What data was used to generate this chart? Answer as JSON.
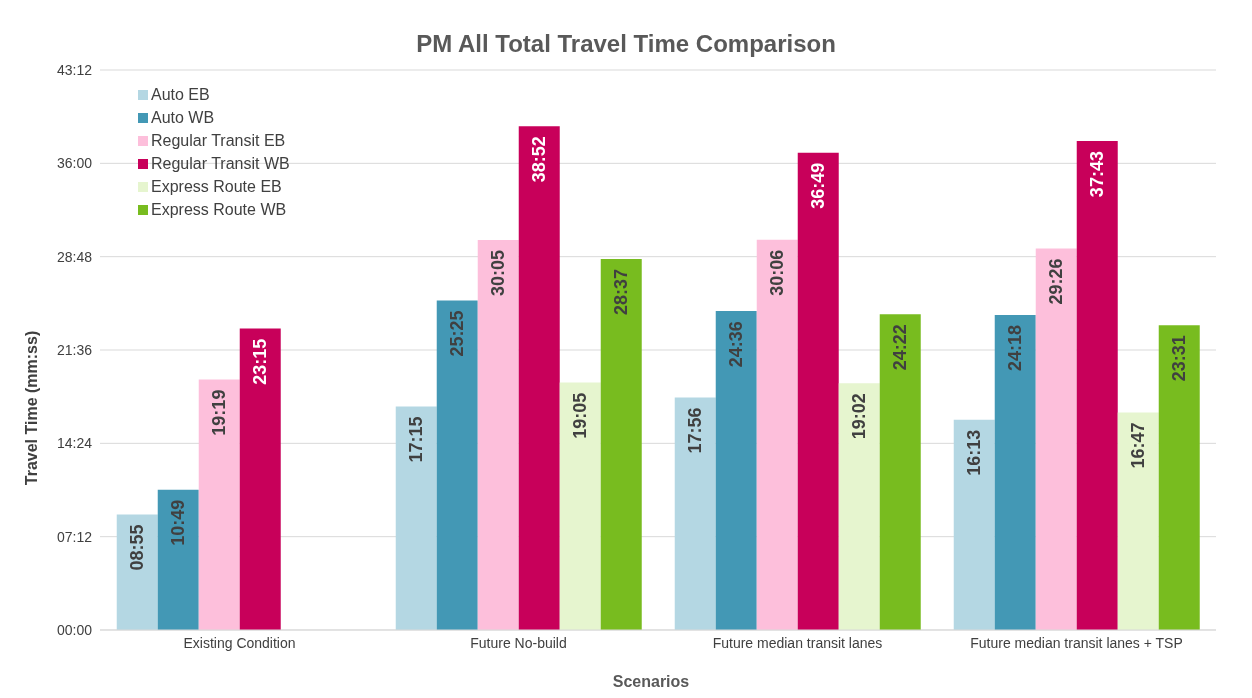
{
  "chart_data": {
    "type": "bar",
    "title": "PM All Total Travel Time Comparison",
    "xlabel": "Scenarios",
    "ylabel": "Travel Time (mm:ss)",
    "categories": [
      "Existing Condition",
      "Future No-build",
      "Future median transit lanes",
      "Future median transit lanes + TSP"
    ],
    "ylim": [
      0,
      2592
    ],
    "yticks": [
      {
        "value": 0,
        "label": "00:00"
      },
      {
        "value": 432,
        "label": "07:12"
      },
      {
        "value": 864,
        "label": "14:24"
      },
      {
        "value": 1296,
        "label": "21:36"
      },
      {
        "value": 1728,
        "label": "28:48"
      },
      {
        "value": 2160,
        "label": "36:00"
      },
      {
        "value": 2592,
        "label": "43:12"
      }
    ],
    "grid": "y",
    "legend": "top left",
    "series": [
      {
        "name": "Auto EB",
        "color": "#b4d7e3",
        "values": [
          535,
          1035,
          1076,
          973
        ],
        "value_labels": [
          "08:55",
          "17:15",
          "17:56",
          "16:13"
        ]
      },
      {
        "name": "Auto WB",
        "color": "#4398b5",
        "values": [
          649,
          1525,
          1476,
          1458
        ],
        "value_labels": [
          "10:49",
          "25:25",
          "24:36",
          "24:18"
        ]
      },
      {
        "name": "Regular Transit EB",
        "color": "#fdbfdb",
        "values": [
          1159,
          1805,
          1806,
          1766
        ],
        "value_labels": [
          "19:19",
          "30:05",
          "30:06",
          "29:26"
        ]
      },
      {
        "name": "Regular Transit WB",
        "color": "#c8005a",
        "values": [
          1395,
          2332,
          2209,
          2263
        ],
        "value_labels": [
          "23:15",
          "38:52",
          "36:49",
          "37:43"
        ]
      },
      {
        "name": "Express Route EB",
        "color": "#e6f5cf",
        "values": [
          null,
          1145,
          1142,
          1007
        ],
        "value_labels": [
          null,
          "19:05",
          "19:02",
          "16:47"
        ]
      },
      {
        "name": "Express Route WB",
        "color": "#78bc1f",
        "values": [
          null,
          1717,
          1462,
          1411
        ],
        "value_labels": [
          null,
          "28:37",
          "24:22",
          "23:31"
        ]
      }
    ]
  }
}
